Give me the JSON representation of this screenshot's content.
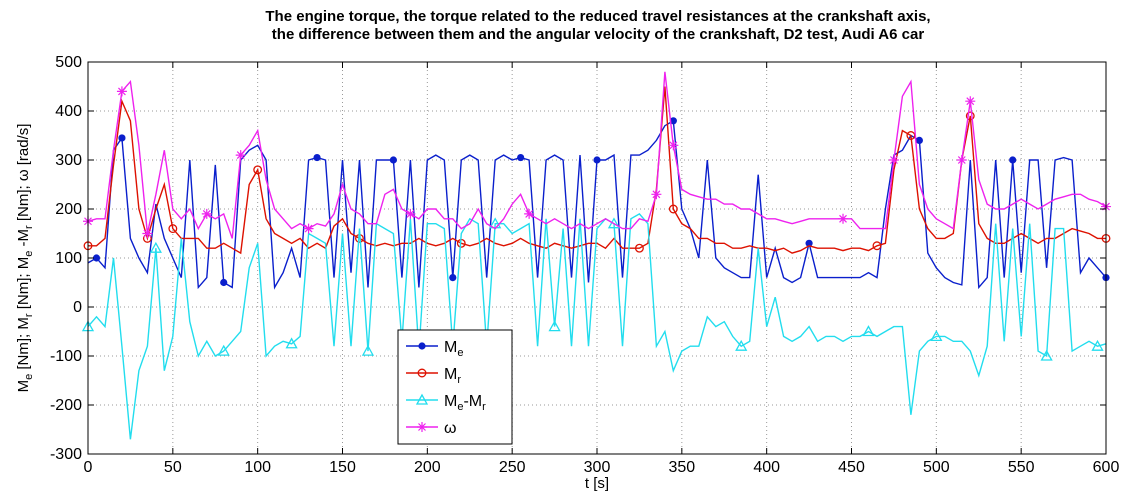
{
  "chart_data": {
    "type": "line",
    "title_line1": "The engine torque, the torque related to the reduced travel resistances at the crankshaft axis,",
    "title_line2": "the difference between them and the angular velocity of the crankshaft, D2 test, Audi A6 car",
    "xlabel": "t [s]",
    "ylabel": {
      "parts": [
        {
          "t": "M",
          "sub": false
        },
        {
          "t": "e",
          "sub": true
        },
        {
          "t": " [Nm]; M",
          "sub": false
        },
        {
          "t": "r",
          "sub": true
        },
        {
          "t": " [Nm]; M",
          "sub": false
        },
        {
          "t": "e",
          "sub": true
        },
        {
          "t": " -M",
          "sub": false
        },
        {
          "t": "r",
          "sub": true
        },
        {
          "t": " [Nm]; ω [rad/s]",
          "sub": false
        }
      ]
    },
    "xlim": [
      0,
      600
    ],
    "ylim": [
      -300,
      500
    ],
    "xticks": [
      0,
      50,
      100,
      150,
      200,
      250,
      300,
      350,
      400,
      450,
      500,
      550,
      600
    ],
    "yticks": [
      -300,
      -200,
      -100,
      0,
      100,
      200,
      300,
      400,
      500
    ],
    "grid": true,
    "legend_position": "lower-left-center",
    "x": [
      0,
      5,
      10,
      15,
      20,
      25,
      30,
      35,
      40,
      45,
      50,
      55,
      60,
      65,
      70,
      75,
      80,
      85,
      90,
      95,
      100,
      105,
      110,
      115,
      120,
      125,
      130,
      135,
      140,
      145,
      150,
      155,
      160,
      165,
      170,
      175,
      180,
      185,
      190,
      195,
      200,
      205,
      210,
      215,
      220,
      225,
      230,
      235,
      240,
      245,
      250,
      255,
      260,
      265,
      270,
      275,
      280,
      285,
      290,
      295,
      300,
      305,
      310,
      315,
      320,
      325,
      330,
      335,
      340,
      345,
      350,
      355,
      360,
      365,
      370,
      375,
      380,
      385,
      390,
      395,
      400,
      405,
      410,
      415,
      420,
      425,
      430,
      435,
      440,
      445,
      450,
      455,
      460,
      465,
      470,
      475,
      480,
      485,
      490,
      495,
      500,
      505,
      510,
      515,
      520,
      525,
      530,
      535,
      540,
      545,
      550,
      555,
      560,
      565,
      570,
      575,
      580,
      585,
      590,
      595,
      600
    ],
    "series": [
      {
        "name": "Me",
        "name_main": "M",
        "name_sub": "e",
        "color": "#0a1fcc",
        "marker": "dot",
        "values": [
          90,
          100,
          80,
          320,
          345,
          140,
          100,
          70,
          210,
          140,
          100,
          60,
          300,
          40,
          60,
          290,
          50,
          40,
          300,
          320,
          330,
          300,
          40,
          70,
          120,
          60,
          300,
          305,
          300,
          60,
          300,
          70,
          300,
          40,
          300,
          300,
          300,
          60,
          300,
          40,
          300,
          310,
          300,
          60,
          300,
          310,
          300,
          60,
          300,
          310,
          300,
          305,
          300,
          60,
          300,
          310,
          300,
          60,
          310,
          50,
          300,
          300,
          310,
          60,
          310,
          310,
          320,
          340,
          370,
          380,
          200,
          160,
          100,
          300,
          100,
          80,
          70,
          60,
          60,
          270,
          60,
          120,
          60,
          50,
          60,
          130,
          60,
          60,
          60,
          60,
          60,
          60,
          70,
          60,
          200,
          310,
          320,
          350,
          340,
          110,
          80,
          60,
          50,
          45,
          300,
          40,
          60,
          300,
          60,
          300,
          70,
          300,
          300,
          80,
          300,
          305,
          300,
          70,
          100,
          80,
          60
        ]
      },
      {
        "name": "Mr",
        "name_main": "M",
        "name_sub": "r",
        "color": "#dd1100",
        "marker": "circle",
        "values": [
          125,
          125,
          140,
          290,
          420,
          380,
          200,
          140,
          200,
          250,
          160,
          140,
          140,
          140,
          120,
          120,
          130,
          120,
          110,
          250,
          280,
          180,
          150,
          140,
          130,
          140,
          120,
          130,
          120,
          165,
          180,
          150,
          140,
          130,
          125,
          130,
          125,
          130,
          130,
          140,
          130,
          125,
          130,
          140,
          130,
          125,
          130,
          140,
          130,
          125,
          130,
          140,
          130,
          125,
          120,
          130,
          125,
          120,
          125,
          130,
          130,
          120,
          140,
          120,
          120,
          120,
          130,
          240,
          450,
          200,
          170,
          160,
          140,
          140,
          130,
          130,
          120,
          120,
          125,
          120,
          120,
          115,
          120,
          110,
          115,
          125,
          120,
          120,
          120,
          115,
          120,
          120,
          115,
          125,
          130,
          280,
          360,
          350,
          200,
          160,
          140,
          140,
          150,
          300,
          390,
          170,
          140,
          130,
          130,
          140,
          150,
          140,
          130,
          140,
          140,
          150,
          160,
          155,
          150,
          140,
          140
        ]
      },
      {
        "name": "Me-Mr",
        "name_main": "M",
        "name_sub": "e",
        "name_main2": "-M",
        "name_sub2": "r",
        "color": "#22ddee",
        "marker": "triangle",
        "values": [
          -40,
          -20,
          -40,
          100,
          -80,
          -270,
          -130,
          -80,
          120,
          -130,
          -60,
          140,
          -30,
          -100,
          -70,
          -100,
          -90,
          -70,
          -50,
          80,
          130,
          -100,
          -80,
          -70,
          -75,
          -60,
          150,
          140,
          130,
          -80,
          150,
          -80,
          160,
          -90,
          170,
          160,
          150,
          -70,
          180,
          -90,
          170,
          170,
          160,
          -80,
          150,
          180,
          170,
          -80,
          170,
          170,
          150,
          160,
          170,
          -80,
          180,
          -40,
          160,
          -80,
          180,
          -80,
          160,
          180,
          170,
          -80,
          180,
          190,
          170,
          -80,
          -50,
          -130,
          -90,
          -80,
          -80,
          -20,
          -40,
          -30,
          -60,
          -80,
          -70,
          120,
          -40,
          20,
          -60,
          -70,
          -60,
          -40,
          -70,
          -60,
          -60,
          -70,
          -60,
          -60,
          -50,
          -60,
          -50,
          -40,
          -40,
          -220,
          -90,
          -70,
          -60,
          -60,
          -70,
          -70,
          -90,
          -140,
          -80,
          170,
          -70,
          160,
          -60,
          170,
          -90,
          -100,
          160,
          160,
          -90,
          -80,
          -70,
          -80,
          -75
        ]
      },
      {
        "name": "ω",
        "name_main": "ω",
        "name_sub": "",
        "color": "#ee22ee",
        "marker": "star",
        "values": [
          175,
          180,
          180,
          320,
          440,
          460,
          330,
          150,
          230,
          320,
          200,
          180,
          200,
          160,
          190,
          180,
          190,
          140,
          310,
          330,
          360,
          260,
          200,
          180,
          160,
          170,
          160,
          170,
          165,
          190,
          250,
          200,
          190,
          170,
          170,
          230,
          240,
          200,
          190,
          180,
          200,
          200,
          180,
          180,
          160,
          170,
          200,
          170,
          160,
          180,
          210,
          230,
          190,
          180,
          170,
          180,
          170,
          160,
          170,
          160,
          170,
          180,
          170,
          160,
          160,
          180,
          175,
          230,
          480,
          330,
          240,
          230,
          225,
          220,
          220,
          210,
          210,
          200,
          200,
          190,
          180,
          180,
          175,
          170,
          175,
          180,
          180,
          180,
          180,
          180,
          180,
          160,
          160,
          160,
          160,
          300,
          430,
          460,
          250,
          200,
          180,
          170,
          160,
          300,
          420,
          260,
          210,
          200,
          200,
          210,
          220,
          210,
          200,
          210,
          220,
          225,
          230,
          230,
          220,
          215,
          205
        ]
      }
    ]
  }
}
